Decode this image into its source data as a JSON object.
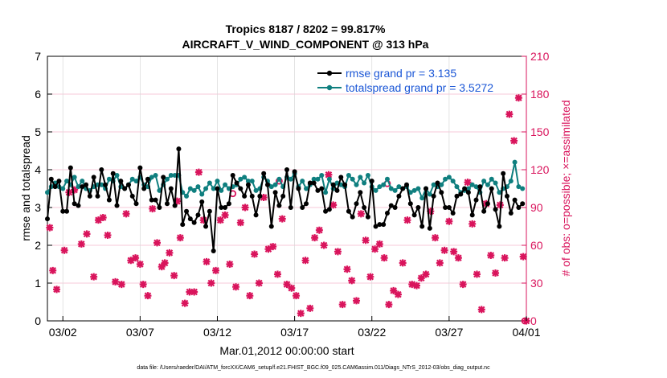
{
  "chart_data": {
    "type": "line",
    "title": "Tropics 8187 / 8202 = 99.817%",
    "subtitle": "AIRCRAFT_V_WIND_COMPONENT @ 313 hPa",
    "xlabel": "Mar.01,2012 00:00:00 start",
    "ylabel": "rmse and totalspread",
    "y2label": "# of obs: o=possible; ×=assimilated",
    "xlim": [
      0,
      31
    ],
    "ylim": [
      0,
      7
    ],
    "y2lim": [
      0,
      210
    ],
    "x_ticks": [
      1,
      6,
      11,
      16,
      21,
      26,
      31
    ],
    "x_tick_labels": [
      "03/02",
      "03/07",
      "03/12",
      "03/17",
      "03/22",
      "03/27",
      "04/01"
    ],
    "y_ticks": [
      0,
      1,
      2,
      3,
      4,
      5,
      6,
      7
    ],
    "y2_ticks": [
      0,
      30,
      60,
      90,
      120,
      150,
      180,
      210
    ],
    "legend_position": "top-right",
    "series": [
      {
        "name": "rmse grand pr = 3.135",
        "axis": "left",
        "color": "#000000",
        "x": [
          0.0,
          0.25,
          0.5,
          0.75,
          1.0,
          1.25,
          1.5,
          1.75,
          2.0,
          2.25,
          2.5,
          2.75,
          3.0,
          3.25,
          3.5,
          3.75,
          4.0,
          4.25,
          4.5,
          4.75,
          5.0,
          5.25,
          5.5,
          5.75,
          6.0,
          6.25,
          6.5,
          6.75,
          7.0,
          7.25,
          7.5,
          7.75,
          8.0,
          8.25,
          8.5,
          8.75,
          9.0,
          9.25,
          9.5,
          9.75,
          10.0,
          10.25,
          10.5,
          10.75,
          11.0,
          11.25,
          11.5,
          11.75,
          12.0,
          12.25,
          12.5,
          12.75,
          13.0,
          13.25,
          13.5,
          13.75,
          14.0,
          14.25,
          14.5,
          14.75,
          15.0,
          15.25,
          15.5,
          15.75,
          16.0,
          16.25,
          16.5,
          16.75,
          17.0,
          17.25,
          17.5,
          17.75,
          18.0,
          18.25,
          18.5,
          18.75,
          19.0,
          19.25,
          19.5,
          19.75,
          20.0,
          20.25,
          20.5,
          20.75,
          21.0,
          21.25,
          21.5,
          21.75,
          22.0,
          22.25,
          22.5,
          22.75,
          23.0,
          23.25,
          23.5,
          23.75,
          24.0,
          24.25,
          24.5,
          24.75,
          25.0,
          25.25,
          25.5,
          25.75,
          26.0,
          26.25,
          26.5,
          26.75,
          27.0,
          27.25,
          27.5,
          27.75,
          28.0,
          28.25,
          28.5,
          28.75,
          29.0,
          29.25,
          29.5,
          29.75,
          30.0,
          30.25,
          30.5,
          30.75
        ],
        "values": [
          2.7,
          3.75,
          3.55,
          3.7,
          2.9,
          2.9,
          4.05,
          3.1,
          3.05,
          3.55,
          3.6,
          3.3,
          3.8,
          3.3,
          4.0,
          3.6,
          3.2,
          3.9,
          3.05,
          3.7,
          3.5,
          3.6,
          3.3,
          3.1,
          4.05,
          3.5,
          3.75,
          3.2,
          3.2,
          3.0,
          3.8,
          3.1,
          3.5,
          3.05,
          4.55,
          2.55,
          2.9,
          2.7,
          2.6,
          2.8,
          3.15,
          2.5,
          2.9,
          1.85,
          3.5,
          3.0,
          3.0,
          3.1,
          3.85,
          3.65,
          3.5,
          3.3,
          3.6,
          3.3,
          2.8,
          3.3,
          3.9,
          3.6,
          2.5,
          3.4,
          3.05,
          3.3,
          4.0,
          3.0,
          3.95,
          3.5,
          3.0,
          3.1,
          3.65,
          3.65,
          3.45,
          3.5,
          2.9,
          2.95,
          3.6,
          3.45,
          3.8,
          3.6,
          2.9,
          2.75,
          3.1,
          3.4,
          3.0,
          2.75,
          3.7,
          2.5,
          2.55,
          2.55,
          2.85,
          3.05,
          3.0,
          3.3,
          3.5,
          3.6,
          3.1,
          2.8,
          3.0,
          2.5,
          3.5,
          2.45,
          3.3,
          3.65,
          3.4,
          3.0,
          3.0,
          2.85,
          3.3,
          3.35,
          3.5,
          3.4,
          2.8,
          3.2,
          3.55,
          2.9,
          3.1,
          3.5,
          2.95,
          2.5,
          3.9,
          3.3,
          2.85,
          3.2,
          3.0,
          3.1
        ]
      },
      {
        "name": "totalspread grand pr = 3.5272",
        "axis": "left",
        "color": "#0f7f7f",
        "x": [
          0.0,
          0.25,
          0.5,
          0.75,
          1.0,
          1.25,
          1.5,
          1.75,
          2.0,
          2.25,
          2.5,
          2.75,
          3.0,
          3.25,
          3.5,
          3.75,
          4.0,
          4.25,
          4.5,
          4.75,
          5.0,
          5.25,
          5.5,
          5.75,
          6.0,
          6.25,
          6.5,
          6.75,
          7.0,
          7.25,
          7.5,
          7.75,
          8.0,
          8.25,
          8.5,
          8.75,
          9.0,
          9.25,
          9.5,
          9.75,
          10.0,
          10.25,
          10.5,
          10.75,
          11.0,
          11.25,
          11.5,
          11.75,
          12.0,
          12.25,
          12.5,
          12.75,
          13.0,
          13.25,
          13.5,
          13.75,
          14.0,
          14.25,
          14.5,
          14.75,
          15.0,
          15.25,
          15.5,
          15.75,
          16.0,
          16.25,
          16.5,
          16.75,
          17.0,
          17.25,
          17.5,
          17.75,
          18.0,
          18.25,
          18.5,
          18.75,
          19.0,
          19.25,
          19.5,
          19.75,
          20.0,
          20.25,
          20.5,
          20.75,
          21.0,
          21.25,
          21.5,
          21.75,
          22.0,
          22.25,
          22.5,
          22.75,
          23.0,
          23.25,
          23.5,
          23.75,
          24.0,
          24.25,
          24.5,
          24.75,
          25.0,
          25.25,
          25.5,
          25.75,
          26.0,
          26.25,
          26.5,
          26.75,
          27.0,
          27.25,
          27.5,
          27.75,
          28.0,
          28.25,
          28.5,
          28.75,
          29.0,
          29.25,
          29.5,
          29.75,
          30.0,
          30.25,
          30.5,
          30.75
        ],
        "values": [
          3.4,
          3.55,
          3.65,
          3.55,
          3.5,
          3.7,
          3.6,
          3.8,
          3.55,
          3.7,
          3.5,
          3.45,
          3.55,
          3.6,
          3.6,
          3.5,
          3.75,
          3.7,
          3.85,
          3.55,
          3.5,
          3.6,
          3.75,
          3.7,
          3.8,
          3.6,
          3.55,
          3.8,
          3.85,
          3.45,
          3.6,
          3.75,
          3.85,
          3.85,
          3.85,
          3.4,
          3.3,
          3.5,
          3.45,
          3.55,
          3.35,
          3.5,
          3.65,
          3.5,
          3.7,
          3.45,
          3.6,
          3.5,
          3.55,
          3.6,
          3.75,
          3.8,
          3.7,
          3.7,
          3.45,
          3.5,
          3.8,
          3.7,
          3.55,
          3.6,
          3.75,
          3.55,
          3.8,
          3.75,
          3.9,
          3.55,
          3.7,
          3.5,
          3.6,
          3.75,
          3.75,
          3.85,
          3.4,
          3.75,
          3.5,
          3.65,
          3.6,
          3.55,
          3.85,
          3.75,
          3.6,
          3.8,
          3.65,
          3.85,
          3.55,
          3.45,
          3.55,
          3.6,
          3.75,
          3.5,
          3.45,
          3.55,
          3.5,
          3.55,
          3.4,
          3.45,
          3.5,
          3.25,
          3.5,
          3.35,
          3.6,
          3.55,
          3.6,
          3.75,
          3.8,
          3.7,
          3.55,
          3.4,
          3.45,
          3.5,
          3.6,
          3.55,
          3.4,
          3.7,
          3.6,
          3.75,
          3.65,
          3.4,
          3.5,
          3.55,
          3.7,
          4.2,
          3.55,
          3.5
        ]
      },
      {
        "name": "# of obs assimilated",
        "axis": "right",
        "color": "#d9145c",
        "marker": "x",
        "x": [
          0.15,
          0.35,
          0.6,
          1.1,
          1.4,
          1.75,
          2.2,
          2.55,
          3.0,
          3.3,
          3.6,
          3.9,
          4.4,
          4.8,
          5.1,
          5.4,
          5.7,
          6.0,
          6.2,
          6.5,
          6.8,
          7.1,
          7.4,
          7.6,
          7.9,
          8.2,
          8.4,
          8.6,
          8.9,
          9.2,
          9.5,
          9.8,
          10.1,
          10.3,
          10.6,
          10.9,
          11.2,
          11.5,
          11.8,
          12.2,
          12.5,
          12.8,
          13.1,
          13.4,
          13.7,
          14.0,
          14.3,
          14.6,
          14.9,
          15.2,
          15.5,
          15.8,
          16.1,
          16.4,
          16.7,
          17.0,
          17.3,
          17.6,
          17.9,
          18.2,
          18.5,
          18.8,
          19.1,
          19.4,
          19.7,
          20.0,
          20.3,
          20.6,
          20.9,
          21.2,
          21.5,
          21.8,
          22.1,
          22.4,
          22.7,
          23.0,
          23.3,
          23.6,
          23.9,
          24.2,
          24.5,
          24.8,
          25.1,
          25.4,
          25.7,
          26.0,
          26.3,
          26.6,
          26.9,
          27.2,
          27.5,
          27.8,
          28.1,
          28.4,
          28.7,
          29.0,
          29.3,
          29.6,
          29.9,
          30.2,
          30.5,
          30.8,
          31.0
        ],
        "values": [
          74,
          40,
          25,
          56,
          102,
          104,
          61,
          69,
          35,
          80,
          82,
          68,
          31,
          29,
          85,
          48,
          50,
          45,
          29,
          20,
          89,
          62,
          43,
          46,
          54,
          36,
          95,
          66,
          14,
          23,
          23,
          118,
          80,
          47,
          30,
          40,
          80,
          84,
          45,
          27,
          78,
          90,
          20,
          53,
          30,
          98,
          57,
          59,
          37,
          81,
          29,
          26,
          20,
          6,
          48,
          10,
          66,
          72,
          60,
          116,
          92,
          55,
          13,
          41,
          32,
          16,
          85,
          64,
          35,
          57,
          61,
          50,
          13,
          24,
          21,
          46,
          80,
          29,
          28,
          34,
          37,
          87,
          66,
          46,
          56,
          79,
          55,
          50,
          29,
          110,
          77,
          37,
          9,
          93,
          52,
          38,
          92,
          50,
          164,
          143,
          177,
          51,
          0
        ]
      },
      {
        "name": "# of obs possible",
        "axis": "right",
        "color": "#d9145c",
        "marker": "o",
        "x": [
          12.0,
          15.0,
          22.0,
          30.9
        ],
        "values": [
          101,
          111,
          109,
          0
        ]
      }
    ],
    "footer": "data file: /Users/raeder/DAI/ATM_forcXX/CAM6_setup/f.e21.FHIST_BGC.f09_025.CAM6assim.011/Diags_NTrS_2012-03/obs_diag_output.nc"
  },
  "colors": {
    "rmse": "#000000",
    "spread": "#0f7f7f",
    "obs": "#d9145c",
    "legend_text": "#1a56d6"
  }
}
